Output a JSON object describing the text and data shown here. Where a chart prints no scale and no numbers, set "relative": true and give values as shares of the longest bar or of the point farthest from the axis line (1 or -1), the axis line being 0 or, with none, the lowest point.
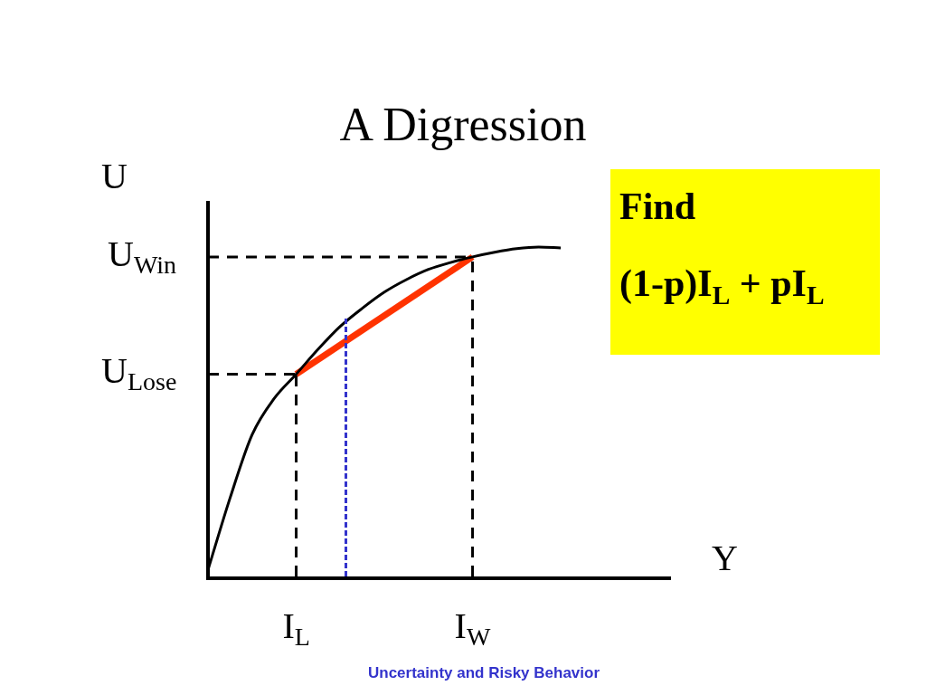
{
  "chart_data": {
    "type": "line",
    "title": "A Digression",
    "xlabel": "Y",
    "ylabel": "U",
    "relative": true,
    "marker": "none",
    "categories": [
      null,
      null,
      null,
      null,
      "I$_{L}$",
      null,
      null,
      null,
      null,
      null,
      null,
      null,
      "I$_{W}$",
      null,
      null,
      null,
      null,
      null,
      null,
      null,
      null,
      null
    ],
    "series": [
      {
        "color": "#000000",
        "values": [
          0.02,
          0.238,
          0.43,
          0.54,
          0.614,
          0.69,
          0.759,
          0.814,
          0.863,
          0.901,
          0.932,
          0.953,
          0.97,
          0.984,
          0.995,
          1,
          0.997,
          null,
          null,
          null,
          null,
          null
        ]
      },
      {
        "color": "#ff3300",
        "values": [
          null,
          null,
          null,
          null,
          0.614,
          null,
          null,
          null,
          null,
          null,
          null,
          null,
          0.97,
          null,
          null,
          null,
          null,
          null,
          null,
          null,
          null,
          null
        ]
      }
    ],
    "ref_lines": [
      {
        "axis": "y",
        "value": 0.97,
        "label": "U$_{Win}$",
        "color": "#000000",
        "line_style": "dashed"
      },
      {
        "axis": "y",
        "value": 0.614,
        "label": "U$_{Lose}$",
        "color": "#000000",
        "line_style": "dashed"
      },
      {
        "axis": "x",
        "value": "I$_{L}$",
        "color": "#000000",
        "line_style": "dashed"
      },
      {
        "axis": "x",
        "value": "I$_{W}$",
        "color": "#000000",
        "line_style": "dashed"
      }
    ],
    "annotations": [
      "Find",
      "(1-p)I$_{L}$ + pI$_{L}$",
      "Uncertainty and Risky Behavior"
    ]
  }
}
